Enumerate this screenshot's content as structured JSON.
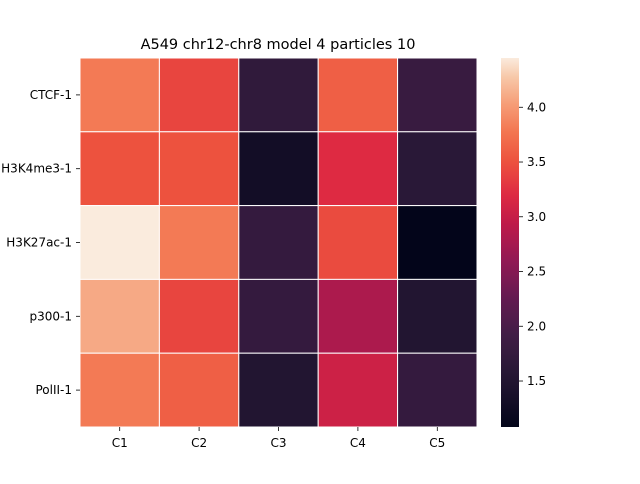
{
  "chart_data": {
    "type": "heatmap",
    "title": "A549 chr12-chr8 model 4 particles 10",
    "xlabel": "",
    "ylabel": "",
    "columns": [
      "C1",
      "C2",
      "C3",
      "C4",
      "C5"
    ],
    "rows": [
      "CTCF-1",
      "H3K4me3-1",
      "H3K27ac-1",
      "p300-1",
      "PolII-1"
    ],
    "values": [
      [
        3.8,
        3.4,
        1.7,
        3.6,
        1.8
      ],
      [
        3.5,
        3.5,
        1.3,
        3.2,
        1.6
      ],
      [
        4.45,
        3.8,
        1.75,
        3.45,
        1.08
      ],
      [
        4.1,
        3.4,
        1.75,
        2.8,
        1.5
      ],
      [
        3.8,
        3.6,
        1.5,
        3.05,
        1.75
      ]
    ],
    "colorbar": {
      "min": 1.08,
      "max": 4.45,
      "ticks": [
        1.5,
        2.0,
        2.5,
        3.0,
        3.5,
        4.0
      ],
      "tick_labels": [
        "1.5",
        "2.0",
        "2.5",
        "3.0",
        "3.5",
        "4.0"
      ],
      "colormap": "rocket"
    }
  }
}
